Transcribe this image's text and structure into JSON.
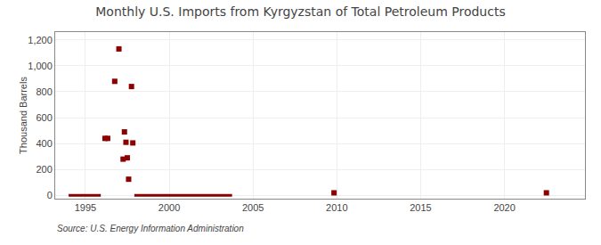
{
  "chart_data": {
    "type": "scatter",
    "title": "Monthly U.S. Imports from Kyrgyzstan of Total Petroleum Products",
    "ylabel": "Thousand Barrels",
    "annotations": [
      "Source: U.S. Energy Information Administration"
    ],
    "xlim": [
      1993.2,
      2024.8
    ],
    "ylim": [
      -25,
      1260
    ],
    "xticks": [
      1995,
      2000,
      2005,
      2010,
      2015,
      2020
    ],
    "yticks": [
      0,
      200,
      400,
      600,
      800,
      {
        "value": 1000,
        "label": "1,000"
      },
      {
        "value": 1200,
        "label": "1,200"
      }
    ],
    "grid": true,
    "series": [
      {
        "type": "scatter",
        "marker": "square",
        "color": "#8b0000",
        "x": [
          1996.17,
          1996.33,
          1996.75,
          1997.0,
          1997.25,
          1997.33,
          1997.42,
          1997.5,
          1997.58,
          1997.75,
          1997.83,
          2009.83,
          2022.5
        ],
        "values": [
          440,
          440,
          880,
          1130,
          280,
          490,
          410,
          290,
          125,
          840,
          405,
          20,
          20
        ]
      },
      {
        "type": "line",
        "color": "#8b0000",
        "x": [
          1994.0,
          1995.92
        ],
        "values": [
          0,
          0
        ]
      },
      {
        "type": "line",
        "color": "#8b0000",
        "x": [
          1997.67,
          1997.67
        ],
        "values": [
          0,
          0
        ]
      },
      {
        "type": "line",
        "color": "#8b0000",
        "x": [
          1997.92,
          2003.75
        ],
        "values": [
          0,
          0
        ]
      }
    ]
  }
}
